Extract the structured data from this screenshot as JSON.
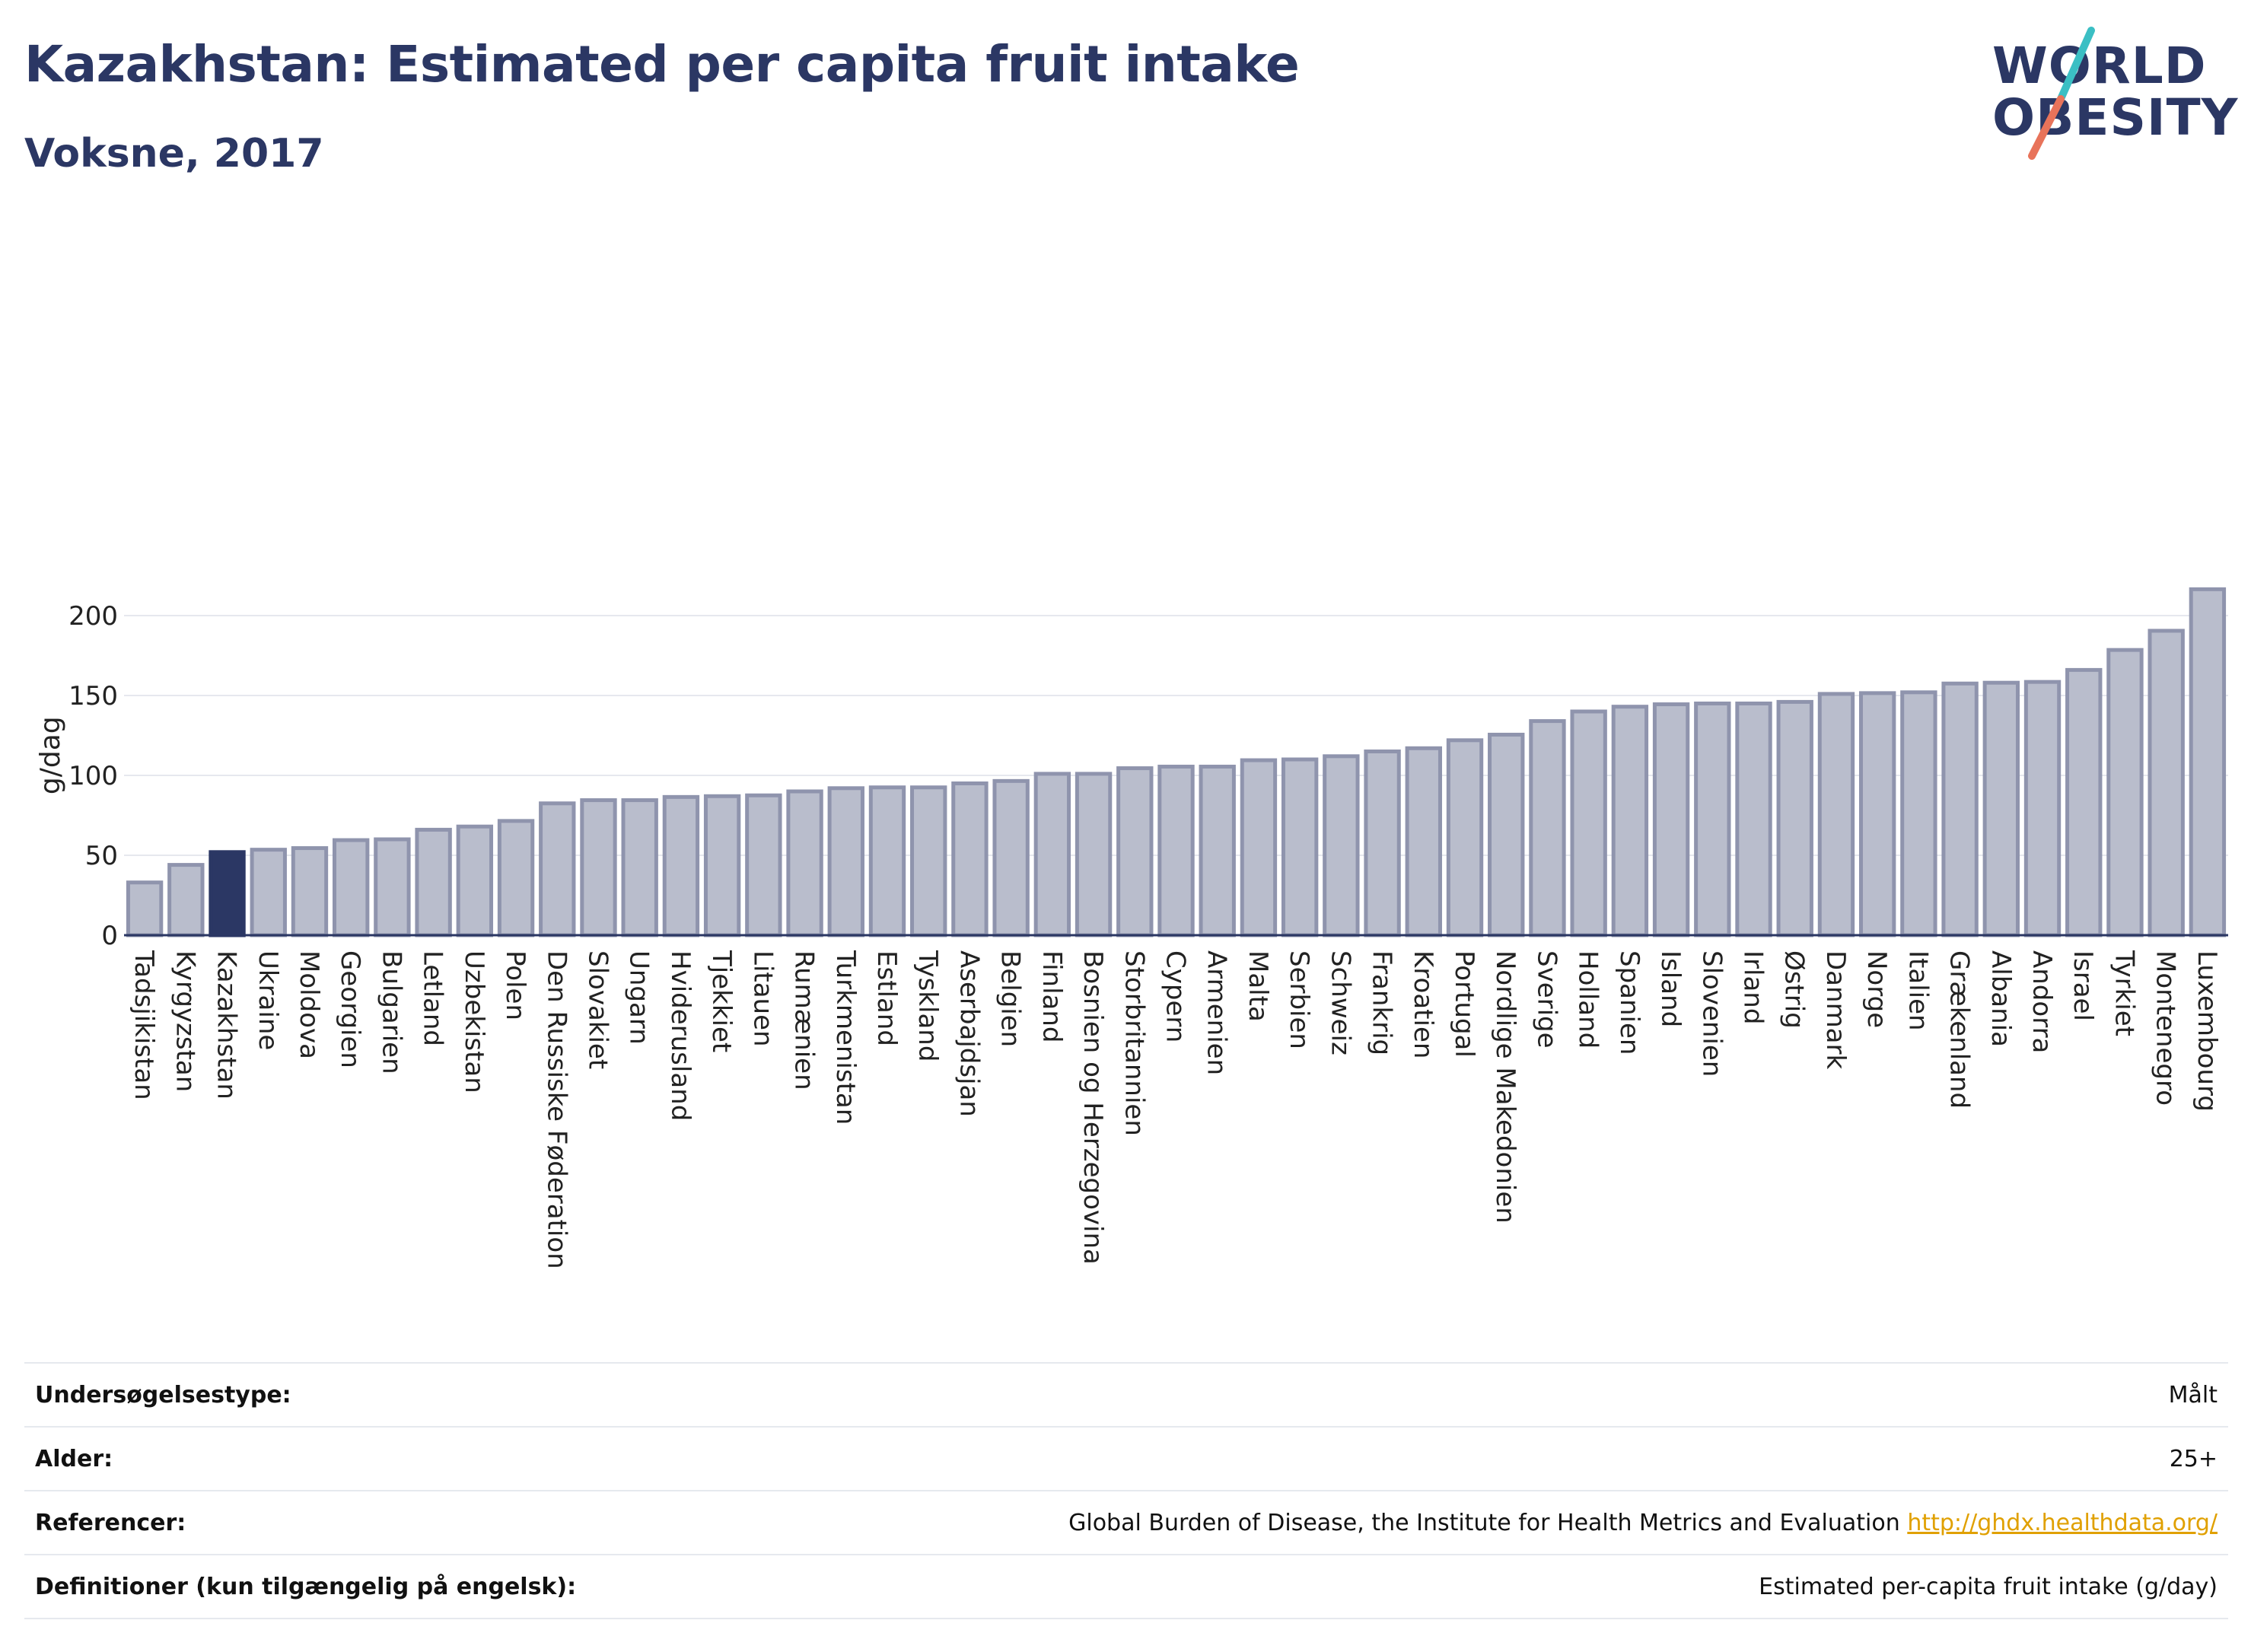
{
  "header": {
    "title": "Kazakhstan: Estimated per capita fruit intake",
    "subtitle": "Voksne, 2017"
  },
  "logo": {
    "line1": "WORLD",
    "line2": "OBESITY",
    "colors": {
      "text": "#2b3764",
      "accent_teal": "#3bbfc4",
      "accent_coral": "#e8735a"
    }
  },
  "chart_data": {
    "type": "bar",
    "title": "Kazakhstan: Estimated per capita fruit intake",
    "subtitle": "Voksne, 2017",
    "ylabel": "g/dag",
    "xlabel": "",
    "ylim": [
      0,
      225
    ],
    "yticks": [
      0,
      50,
      100,
      150,
      200
    ],
    "grid": true,
    "highlight": "Kazakhstan",
    "colors": {
      "bar": "#b9bdcc",
      "bar_edge": "#8f94ad",
      "highlight": "#2b3764"
    },
    "categories": [
      "Tadsjikistan",
      "Kyrgyzstan",
      "Kazakhstan",
      "Ukraine",
      "Moldova",
      "Georgien",
      "Bulgarien",
      "Letland",
      "Uzbekistan",
      "Polen",
      "Den Russiske Føderation",
      "Slovakiet",
      "Ungarn",
      "Hviderusland",
      "Tjekkiet",
      "Litauen",
      "Rumænien",
      "Turkmenistan",
      "Estland",
      "Tyskland",
      "Aserbajdsjan",
      "Belgien",
      "Finland",
      "Bosnien og Herzegovina",
      "Storbritannien",
      "Cypern",
      "Armenien",
      "Malta",
      "Serbien",
      "Schweiz",
      "Frankrig",
      "Kroatien",
      "Portugal",
      "Nordlige Makedonien",
      "Sverige",
      "Holland",
      "Spanien",
      "Island",
      "Slovenien",
      "Irland",
      "Østrig",
      "Danmark",
      "Norge",
      "Italien",
      "Grækenland",
      "Albania",
      "Andorra",
      "Israel",
      "Tyrkiet",
      "Montenegro",
      "Luxembourg"
    ],
    "values": [
      33,
      44,
      52,
      53.5,
      54.5,
      59.5,
      60,
      66,
      68,
      71.5,
      82.5,
      84.5,
      84.5,
      86.5,
      87,
      87.5,
      90,
      92,
      92.5,
      92.5,
      95,
      96.5,
      101,
      101,
      104.5,
      105.5,
      105.5,
      109.5,
      110,
      112,
      115,
      117,
      122,
      125.5,
      134,
      140,
      143,
      144.5,
      145,
      145,
      146,
      151,
      151.5,
      152,
      157.5,
      158,
      158.5,
      166,
      178.5,
      190.5,
      216.5
    ]
  },
  "info": {
    "rows": [
      {
        "key": "Undersøgelsestype:",
        "value": "Målt"
      },
      {
        "key": "Alder:",
        "value": "25+"
      },
      {
        "key": "Referencer:",
        "value": "Global Burden of Disease, the Institute for Health Metrics and Evaluation",
        "link": "http://ghdx.healthdata.org/"
      },
      {
        "key": "Definitioner (kun tilgængelig på engelsk):",
        "value": "Estimated per-capita fruit intake (g/day)"
      }
    ]
  }
}
